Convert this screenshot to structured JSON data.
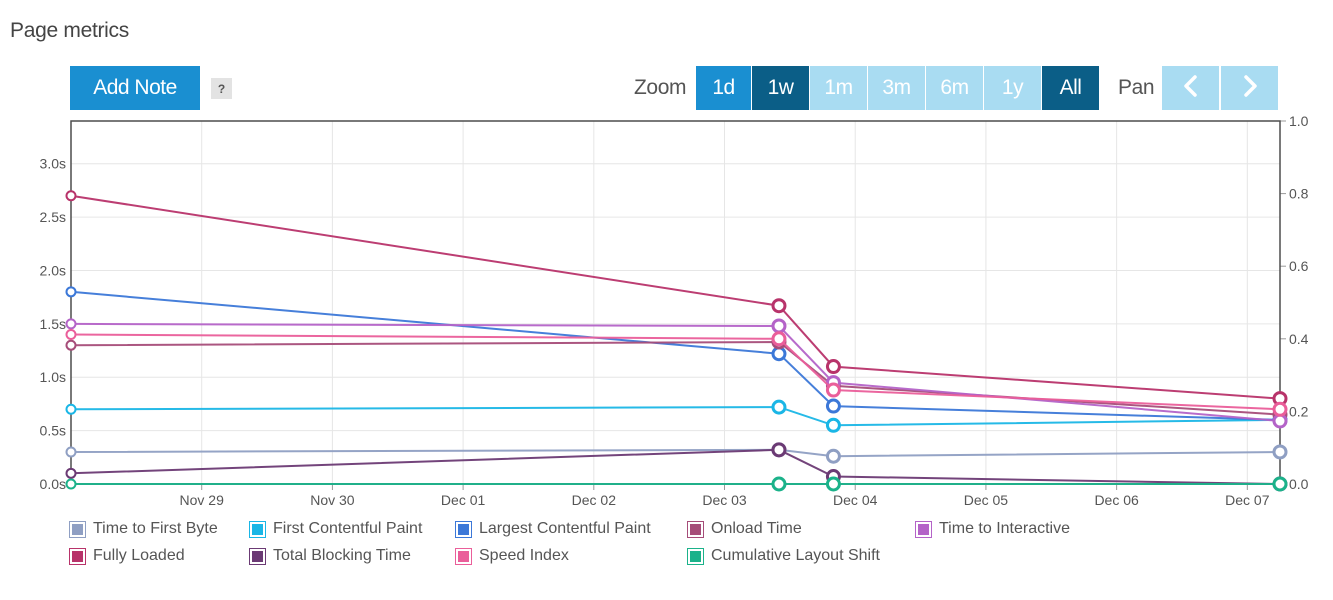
{
  "page": {
    "title": "Page metrics"
  },
  "toolbar": {
    "add_note_label": "Add Note",
    "help_label": "?",
    "zoom_label": "Zoom",
    "zoom_buttons": [
      {
        "label": "1d",
        "state": "normal"
      },
      {
        "label": "1w",
        "state": "active"
      },
      {
        "label": "1m",
        "state": "disabled"
      },
      {
        "label": "3m",
        "state": "disabled"
      },
      {
        "label": "6m",
        "state": "disabled"
      },
      {
        "label": "1y",
        "state": "disabled"
      },
      {
        "label": "All",
        "state": "active"
      }
    ],
    "pan_label": "Pan",
    "pan_left_icon": "chevron-left-icon",
    "pan_right_icon": "chevron-right-icon"
  },
  "colors": {
    "button": "#1a8fd1",
    "button_active": "#0b5e87",
    "button_disabled": "#a9dcf2"
  },
  "chart_data": {
    "type": "line",
    "x_type": "datetime",
    "x_ticks": [
      "Nov 29",
      "Nov 30",
      "Dec 01",
      "Dec 02",
      "Dec 03",
      "Dec 04",
      "Dec 05",
      "Dec 06",
      "Dec 07"
    ],
    "xlim": [
      "2024-11-28 00:00",
      "2024-12-07 06:00"
    ],
    "y_left": {
      "ticks": [
        "0.0s",
        "0.5s",
        "1.0s",
        "1.5s",
        "2.0s",
        "2.5s",
        "3.0s"
      ],
      "range": [
        0,
        3.4
      ],
      "unit": "s"
    },
    "y_right": {
      "ticks": [
        "0.0",
        "0.2",
        "0.4",
        "0.6",
        "0.8",
        "1.0"
      ],
      "range": [
        0,
        1.0
      ]
    },
    "grid": true,
    "legend_position": "bottom",
    "x": [
      "2024-11-28 00:00",
      "2024-12-03 10:00",
      "2024-12-03 20:00",
      "2024-12-07 06:00"
    ],
    "series": [
      {
        "name": "Time to First Byte",
        "color": "#8f9fc3",
        "axis": "left",
        "values": [
          0.3,
          0.32,
          0.26,
          0.3
        ]
      },
      {
        "name": "First Contentful Paint",
        "color": "#1ab6e6",
        "axis": "left",
        "values": [
          0.7,
          0.72,
          0.55,
          0.6
        ]
      },
      {
        "name": "Largest Contentful Paint",
        "color": "#3c78d8",
        "axis": "left",
        "values": [
          1.8,
          1.22,
          0.73,
          0.6
        ]
      },
      {
        "name": "Onload Time",
        "color": "#a64d79",
        "axis": "left",
        "values": [
          1.3,
          1.33,
          0.92,
          0.65
        ]
      },
      {
        "name": "Time to Interactive",
        "color": "#b463c8",
        "axis": "left",
        "values": [
          1.5,
          1.48,
          0.95,
          0.59
        ]
      },
      {
        "name": "Fully Loaded",
        "color": "#b8336a",
        "axis": "left",
        "values": [
          2.7,
          1.67,
          1.1,
          0.8
        ]
      },
      {
        "name": "Total Blocking Time",
        "color": "#6b3a74",
        "axis": "left",
        "values": [
          0.1,
          0.32,
          0.07,
          0.0
        ]
      },
      {
        "name": "Speed Index",
        "color": "#ea5e9a",
        "axis": "left",
        "values": [
          1.4,
          1.36,
          0.88,
          0.7
        ]
      },
      {
        "name": "Cumulative Layout Shift",
        "color": "#1bb28a",
        "axis": "right",
        "values": [
          0.0,
          0.0,
          0.0,
          0.0
        ]
      }
    ]
  }
}
